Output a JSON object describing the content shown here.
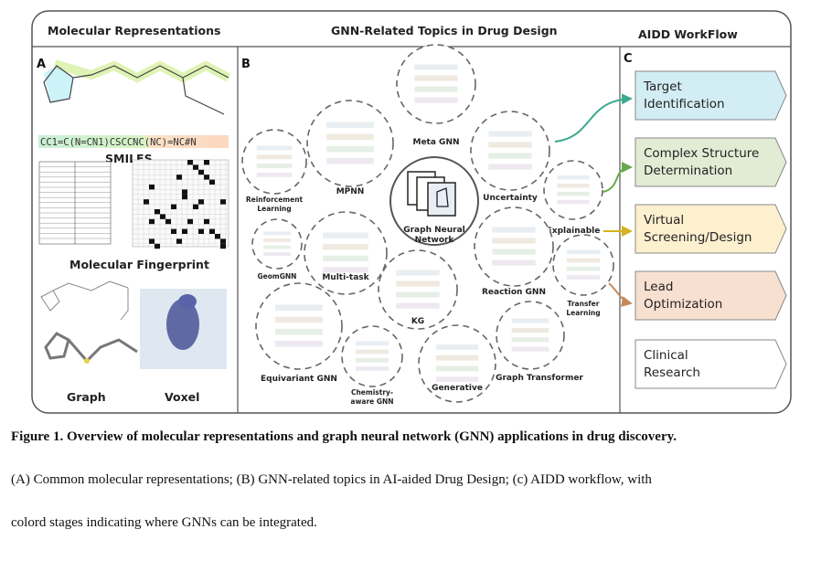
{
  "figure": {
    "headers": {
      "a": "Molecular Representations",
      "b": "GNN-Related Topics in Drug Design",
      "c": "AIDD WorkFlow"
    },
    "panel_letters": {
      "a": "A",
      "b": "B",
      "c": "C"
    },
    "panel_a": {
      "smiles_string": "CC1=C(N=CN1)CSCCNC(NC)=NC#N",
      "smiles_label": "SMILES",
      "fingerprint_label": "Molecular Fingerprint",
      "graph_label": "Graph",
      "voxel_label": "Voxel"
    },
    "panel_b": {
      "center_line1": "Graph Neural",
      "center_line2": "Network",
      "topics": [
        {
          "label": "Meta GNN"
        },
        {
          "label": "MPNN"
        },
        {
          "label": "Reinforcement",
          "label2": "Learning"
        },
        {
          "label": "Uncertainty"
        },
        {
          "label": "Explainable"
        },
        {
          "label": "Reaction  GNN"
        },
        {
          "label": "Transfer",
          "label2": "Learning"
        },
        {
          "label": "GeomGNN"
        },
        {
          "label": "Multi-task"
        },
        {
          "label": "KG"
        },
        {
          "label": "Equivariant  GNN"
        },
        {
          "label": "Chemistry-",
          "label2": "aware GNN"
        },
        {
          "label": "Generative"
        },
        {
          "label": "Graph Transformer"
        }
      ]
    },
    "panel_c": {
      "stages": [
        {
          "line1": "Target",
          "line2": "Identification",
          "color": "#d3edf4"
        },
        {
          "line1": "Complex Structure",
          "line2": "Determination",
          "color": "#e2ecd5"
        },
        {
          "line1": "Virtual",
          "line2": "Screening/Design",
          "color": "#fdf0cf"
        },
        {
          "line1": "Lead",
          "line2": "Optimization",
          "color": "#f8e0d1"
        },
        {
          "line1": "Clinical",
          "line2": "Research",
          "color": "#ffffff"
        }
      ],
      "connector_colors": [
        "#3aa98f",
        "#6aa84f",
        "#d4b31c",
        "#c78a5a"
      ]
    },
    "caption": {
      "title": "Figure 1. Overview of molecular representations and graph neural network (GNN) applications in drug discovery.",
      "line1": "(A) Common molecular representations; (B) GNN-related topics in AI-aided Drug Design; (c) AIDD workflow, with",
      "line2": "colord stages indicating where GNNs can be integrated."
    }
  }
}
